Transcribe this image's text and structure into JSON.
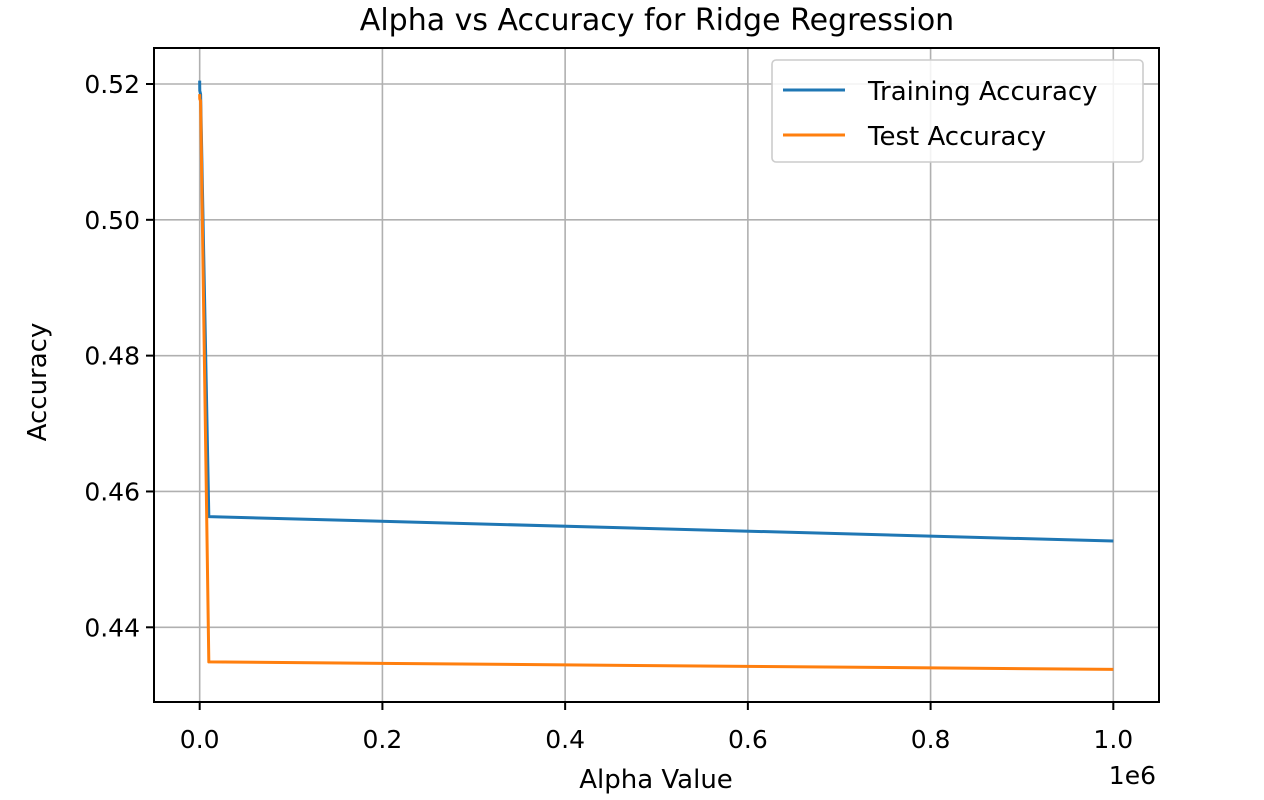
{
  "chart_data": {
    "type": "line",
    "title": "Alpha vs Accuracy for Ridge Regression",
    "xlabel": "Alpha Value",
    "ylabel": "Accuracy",
    "x_scale_label": "1e6",
    "xlim": [
      -50000,
      1050000
    ],
    "ylim": [
      0.429,
      0.5253
    ],
    "x_ticks": [
      0,
      200000,
      400000,
      600000,
      800000,
      1000000
    ],
    "x_tick_labels": [
      "0.0",
      "0.2",
      "0.4",
      "0.6",
      "0.8",
      "1.0"
    ],
    "y_ticks": [
      0.44,
      0.46,
      0.48,
      0.5,
      0.52
    ],
    "y_tick_labels": [
      "0.44",
      "0.46",
      "0.48",
      "0.50",
      "0.52"
    ],
    "grid": true,
    "legend_position": "top-right",
    "series": [
      {
        "name": "Training Accuracy",
        "color": "#1f77b4",
        "x": [
          0.0001,
          0.001,
          0.01,
          0.1,
          1,
          10,
          100,
          1000,
          10000,
          1000000
        ],
        "y": [
          0.5205,
          0.5205,
          0.5205,
          0.5205,
          0.5203,
          0.52,
          0.519,
          0.5185,
          0.4563,
          0.4527
        ]
      },
      {
        "name": "Test Accuracy",
        "color": "#ff7f0e",
        "x": [
          0.0001,
          0.001,
          0.01,
          0.1,
          1,
          10,
          100,
          1000,
          10000,
          1000000
        ],
        "y": [
          0.5185,
          0.5185,
          0.5185,
          0.5185,
          0.5184,
          0.5182,
          0.5178,
          0.5175,
          0.4349,
          0.4338
        ]
      }
    ]
  }
}
